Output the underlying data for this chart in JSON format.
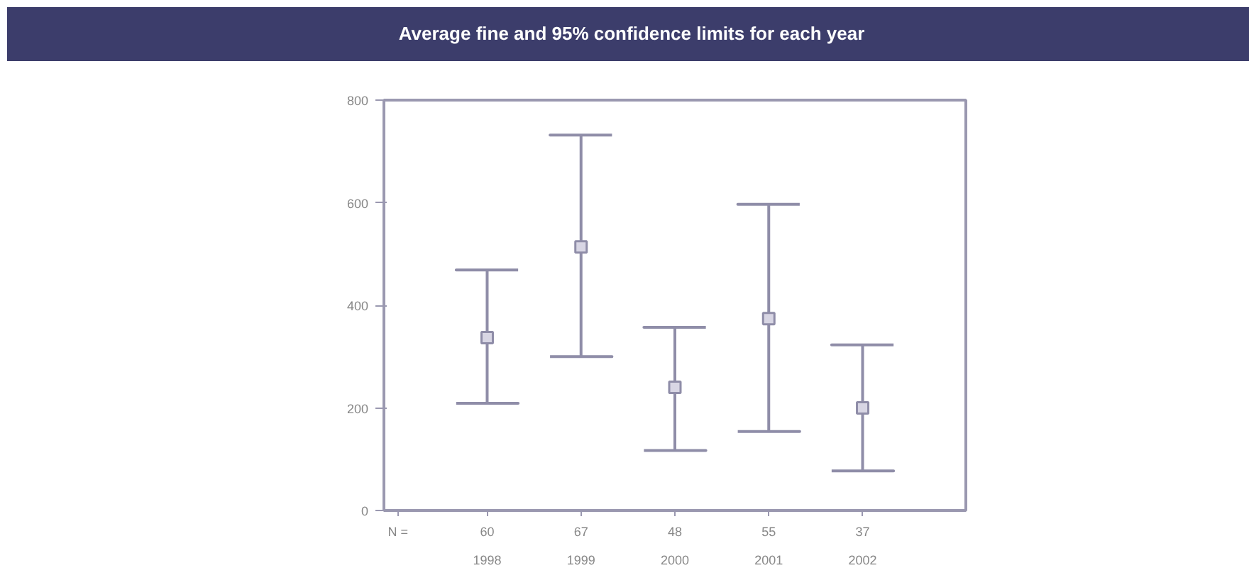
{
  "chart_data": {
    "type": "scatter",
    "title": "Average fine and 95% confidence limits for each year",
    "categories": [
      "1998",
      "1999",
      "2000",
      "2001",
      "2002"
    ],
    "values": [
      337,
      514,
      240,
      374,
      200
    ],
    "errors": [
      [
        209,
        469
      ],
      [
        300,
        732
      ],
      [
        117,
        357
      ],
      [
        154,
        597
      ],
      [
        77,
        323
      ]
    ],
    "color": "#8f8da8",
    "marker": "square",
    "ylim": [
      0,
      800
    ],
    "yticks": [
      0,
      200,
      400,
      600,
      800
    ],
    "grid": false,
    "annotations": [
      "N =",
      "60",
      "67",
      "48",
      "55",
      "37"
    ]
  }
}
